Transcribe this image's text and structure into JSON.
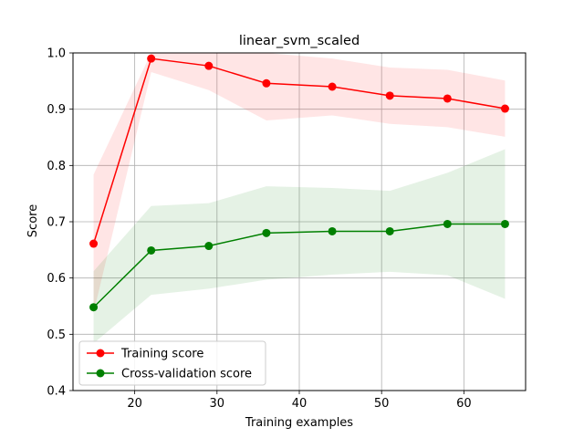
{
  "chart_data": {
    "type": "line",
    "title": "linear_svm_scaled",
    "xlabel": "Training examples",
    "ylabel": "Score",
    "xlim": [
      12.5,
      67.5
    ],
    "ylim": [
      0.4,
      1.0
    ],
    "xticks": [
      20,
      30,
      40,
      50,
      60
    ],
    "yticks": [
      0.4,
      0.5,
      0.6,
      0.7,
      0.8,
      0.9,
      1.0
    ],
    "grid": true,
    "legend_position": "lower-left",
    "x": [
      15,
      22,
      29,
      36,
      44,
      51,
      58,
      65
    ],
    "series": [
      {
        "name": "Training score",
        "color": "#ff0000",
        "values": [
          0.661,
          0.99,
          0.977,
          0.946,
          0.94,
          0.924,
          0.919,
          0.901
        ],
        "band_lower": [
          0.538,
          0.966,
          0.934,
          0.88,
          0.889,
          0.874,
          0.868,
          0.851
        ],
        "band_upper": [
          0.784,
          1.0,
          1.0,
          1.0,
          0.99,
          0.974,
          0.97,
          0.951
        ]
      },
      {
        "name": "Cross-validation score",
        "color": "#008000",
        "values": [
          0.548,
          0.649,
          0.657,
          0.68,
          0.683,
          0.683,
          0.696,
          0.696
        ],
        "band_lower": [
          0.484,
          0.57,
          0.581,
          0.597,
          0.606,
          0.611,
          0.605,
          0.563
        ],
        "band_upper": [
          0.612,
          0.728,
          0.733,
          0.763,
          0.76,
          0.755,
          0.787,
          0.829
        ]
      }
    ]
  }
}
